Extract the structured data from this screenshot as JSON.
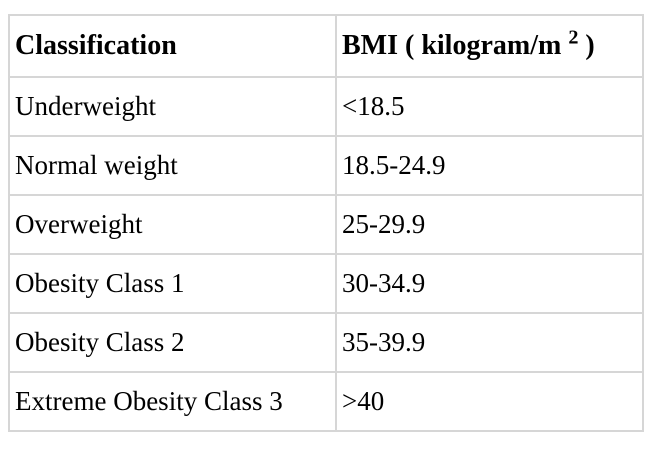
{
  "table": {
    "border_color": "#d6d6d6",
    "text_color": "#000000",
    "header": {
      "classification": "Classification",
      "bmi_prefix": "BMI ( kilogram/m ",
      "bmi_superscript": "2",
      "bmi_suffix": " )"
    },
    "rows": [
      {
        "classification": "Underweight",
        "bmi": "<18.5"
      },
      {
        "classification": "Normal weight",
        "bmi": "18.5-24.9"
      },
      {
        "classification": "Overweight",
        "bmi": "25-29.9"
      },
      {
        "classification": "Obesity Class 1",
        "bmi": "30-34.9"
      },
      {
        "classification": "Obesity Class 2",
        "bmi": "35-39.9"
      },
      {
        "classification": "Extreme Obesity Class 3",
        "bmi": ">40"
      }
    ]
  }
}
